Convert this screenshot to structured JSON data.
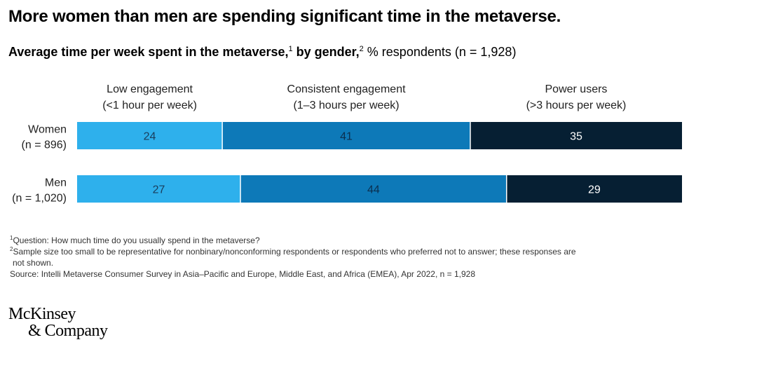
{
  "title": "More women than men are spending significant time in the metaverse.",
  "subtitle": {
    "bold_part1": "Average time per week spent in the metaverse,",
    "sup1": "1",
    "bold_part2": " by gender,",
    "sup2": "2",
    "rest": " % respondents (n = 1,928)"
  },
  "chart_data": {
    "type": "bar",
    "orientation": "horizontal",
    "stacked": true,
    "unit": "% respondents",
    "categories": [
      {
        "name": "Women",
        "sample": "(n = 896)"
      },
      {
        "name": "Men",
        "sample": "(n = 1,020)"
      }
    ],
    "series": [
      {
        "name": "Low engagement",
        "detail": "(<1 hour per week)",
        "color": "#2eb0ec",
        "label_color": "#1a3d5c",
        "values": [
          24,
          27
        ]
      },
      {
        "name": "Consistent engagement",
        "detail": "(1–3 hours per week)",
        "color": "#0d79b8",
        "label_color": "#0b2f4f",
        "values": [
          41,
          44
        ]
      },
      {
        "name": "Power users",
        "detail": "(>3 hours per week)",
        "color": "#061f33",
        "label_color": "#ffffff",
        "values": [
          35,
          29
        ]
      }
    ],
    "xlim": [
      0,
      100
    ],
    "legend_position": "top"
  },
  "footnotes": {
    "note1_marker": "1",
    "note1": "Question: How much time do you usually spend in the metaverse?",
    "note2_marker": "2",
    "note2_line1": "Sample size too small to be representative for nonbinary/nonconforming respondents or respondents who preferred not to answer; these responses are",
    "note2_line2": "not shown.",
    "source": "Source: Intelli Metaverse Consumer Survey in Asia–Pacific and Europe, Middle East, and Africa (EMEA), Apr 2022, n = 1,928"
  },
  "logo": {
    "line1": "McKinsey",
    "line2": "& Company"
  }
}
